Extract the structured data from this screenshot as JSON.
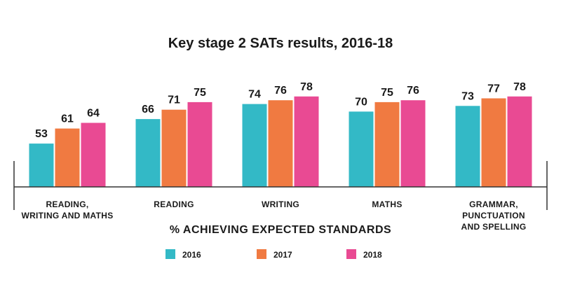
{
  "chart_data": {
    "type": "bar",
    "title": "Key stage 2 SATs results, 2016-18",
    "xlabel": "% ACHIEVING EXPECTED STANDARDS",
    "ylabel": "",
    "ylim": [
      30,
      85
    ],
    "grid": false,
    "legend_position": "bottom",
    "categories": [
      [
        "READING,",
        "WRITING AND MATHS"
      ],
      [
        "READING"
      ],
      [
        "WRITING"
      ],
      [
        "MATHS"
      ],
      [
        "GRAMMAR,",
        "PUNCTUATION",
        "AND SPELLING"
      ]
    ],
    "series": [
      {
        "name": "2016",
        "color": "#33b9c6",
        "values": [
          53,
          66,
          74,
          70,
          73
        ]
      },
      {
        "name": "2017",
        "color": "#f07a41",
        "values": [
          61,
          71,
          76,
          75,
          77
        ]
      },
      {
        "name": "2018",
        "color": "#e94a93",
        "values": [
          64,
          75,
          78,
          76,
          78
        ]
      }
    ]
  }
}
